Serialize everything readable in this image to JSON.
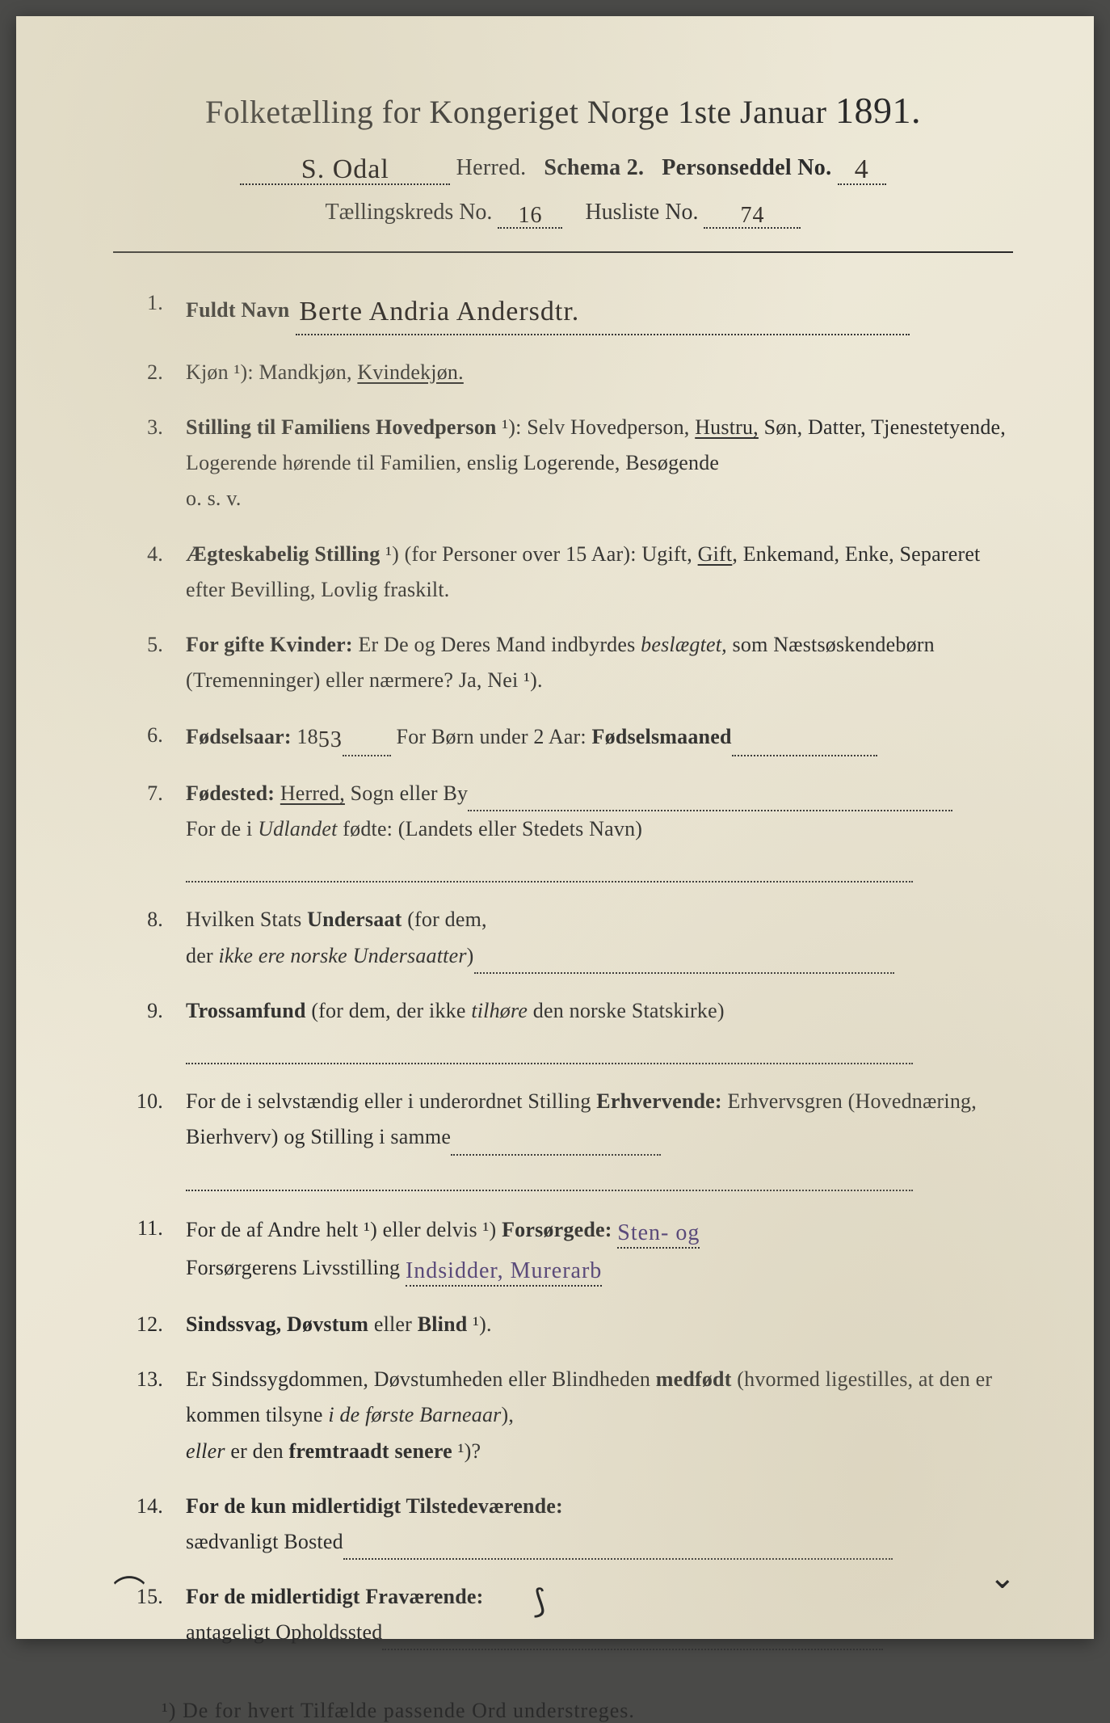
{
  "colors": {
    "paper_bg": "#e8e3d0",
    "text": "#2a2a2a",
    "handwriting": "#3a3530",
    "handwriting_purple": "#5a4a7a",
    "page_surround": "#4a4a48"
  },
  "typography": {
    "title_fontsize": 40,
    "year_fontsize": 46,
    "subline_fontsize": 28,
    "body_fontsize": 26,
    "handwritten_fontsize": 34,
    "font_family_print": "Georgia, Times New Roman, serif",
    "font_family_script": "Brush Script MT, cursive"
  },
  "header": {
    "title_prefix": "Folketælling for Kongeriget Norge 1ste Januar",
    "year": "1891.",
    "herred_value": "S. Odal",
    "herred_label": "Herred.",
    "schema_label": "Schema 2.",
    "personseddel_label": "Personseddel No.",
    "personseddel_value": "4",
    "kreds_label": "Tællingskreds No.",
    "kreds_value": "16",
    "husliste_label": "Husliste No.",
    "husliste_value": "74"
  },
  "items": [
    {
      "num": "1.",
      "label": "Fuldt Navn",
      "handwritten": "Berte Andria Andersdtr."
    },
    {
      "num": "2.",
      "text_parts": [
        "Kjøn ¹): Mandkjøn, ",
        {
          "u": "Kvindekjøn."
        }
      ]
    },
    {
      "num": "3.",
      "text_parts": [
        {
          "b": "Stilling til Familiens Hovedperson"
        },
        " ¹): Selv Hovedperson, ",
        {
          "u": "Hustru,"
        },
        " Søn, Datter, Tjenestetyende, Logerende hørende til Familien, enslig Logerende, Besøgende",
        {
          "br": true
        },
        "o. s. v."
      ]
    },
    {
      "num": "4.",
      "text_parts": [
        {
          "b": "Ægteskabelig Stilling"
        },
        " ¹) (for Personer over 15 Aar): Ugift, ",
        {
          "u": "Gift"
        },
        ", Enke­mand, Enke, Separeret efter Bevilling, Lovlig fraskilt."
      ]
    },
    {
      "num": "5.",
      "text_parts": [
        {
          "b": "For gifte Kvinder:"
        },
        " Er De og Deres Mand indbyrdes ",
        {
          "ital": "beslægtet,"
        },
        " som Næstsøskendebørn (Tremenninger) eller nærmere? Ja, Nei ¹)."
      ]
    },
    {
      "num": "6.",
      "text_parts": [
        {
          "b": "Fødselsaar:"
        },
        " 18",
        {
          "hw": "53"
        },
        {
          "dots": 60
        },
        " For Børn under 2 Aar: ",
        {
          "b": "Fødselsmaaned"
        },
        {
          "dots": 180
        }
      ]
    },
    {
      "num": "7.",
      "text_parts": [
        {
          "b": "Fødested:"
        },
        " ",
        {
          "u": "Herred,"
        },
        " Sogn eller By",
        {
          "dots": 600
        },
        {
          "br": true
        },
        "For de i ",
        {
          "ital": "Udlandet"
        },
        " fødte: (Landets eller Stedets Navn)",
        {
          "br": true
        },
        {
          "dots": 900
        }
      ]
    },
    {
      "num": "8.",
      "text_parts": [
        "Hvilken Stats ",
        {
          "b": "Undersaat"
        },
        " (for dem,",
        {
          "br": true
        },
        "der ",
        {
          "ital": "ikke ere norske Undersaatter"
        },
        ")",
        {
          "dots": 520
        }
      ]
    },
    {
      "num": "9.",
      "text_parts": [
        {
          "b": "Trossamfund"
        },
        " (for dem, der ikke ",
        {
          "ital": "tilhøre"
        },
        " den norske Statskirke)",
        {
          "br": true
        },
        {
          "dots": 900
        }
      ]
    },
    {
      "num": "10.",
      "text_parts": [
        "For de i selvstændig eller i underordnet Stilling ",
        {
          "b": "Erhvervende:"
        },
        " Erhvervs­gren (Hovednæring, Bierhverv) og Stilling i samme",
        {
          "dots": 260
        },
        {
          "br": true
        },
        {
          "dots": 900
        }
      ]
    },
    {
      "num": "11.",
      "text_parts": [
        "For de af Andre helt ¹) eller delvis ¹) ",
        {
          "b": "Forsørgede:"
        },
        " ",
        {
          "hw_purple": "Sten- og"
        },
        {
          "br": true
        },
        "Forsørgerens Livsstilling ",
        {
          "hw_purple": "Indsidder, Murerarb"
        }
      ]
    },
    {
      "num": "12.",
      "text_parts": [
        {
          "b": "Sindssvag, Døvstum"
        },
        " eller ",
        {
          "b": "Blind"
        },
        " ¹)."
      ]
    },
    {
      "num": "13.",
      "text_parts": [
        "Er Sindssygdommen, Døvstumheden eller Blindheden ",
        {
          "b": "medfødt"
        },
        " (hvormed ligestilles, at den er kommen tilsyne ",
        {
          "ital": "i de første Barneaar"
        },
        "),",
        {
          "br": true
        },
        {
          "ital": "eller"
        },
        " er den ",
        {
          "b": "fremtraadt senere"
        },
        " ¹)?"
      ]
    },
    {
      "num": "14.",
      "text_parts": [
        {
          "b": "For de kun midlertidigt Tilstedeværende:"
        },
        {
          "br": true
        },
        "sædvanligt Bosted",
        {
          "dots": 680
        }
      ]
    },
    {
      "num": "15.",
      "text_parts": [
        {
          "b": "For de midlertidigt Fraværende:"
        },
        {
          "br": true
        },
        "antageligt Opholdssted",
        {
          "dots": 620
        }
      ]
    }
  ],
  "footnote": "¹) De for hvert Tilfælde passende Ord understreges."
}
